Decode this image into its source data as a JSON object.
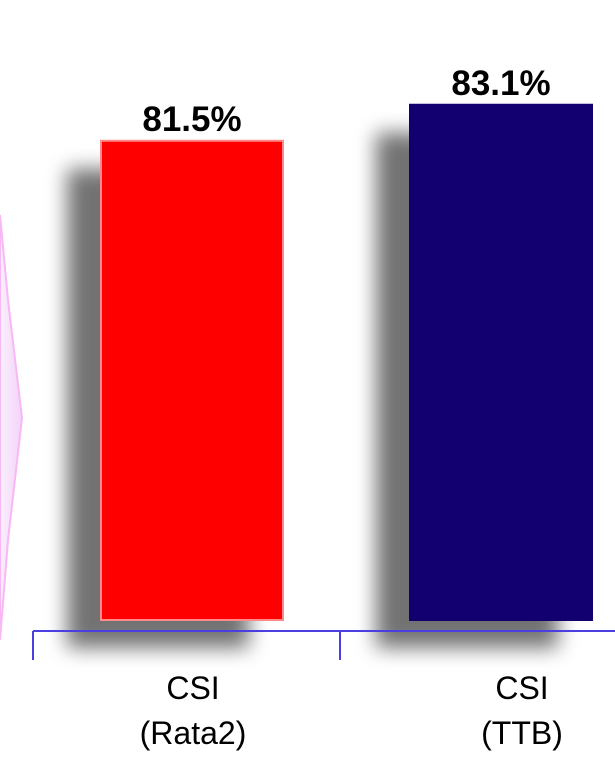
{
  "chart_data": {
    "type": "bar",
    "categories": [
      [
        "CSI",
        "(Rata2)"
      ],
      [
        "CSI",
        "(TTB)"
      ]
    ],
    "values": [
      81.5,
      83.1
    ],
    "value_labels": [
      "81.5%",
      "83.1%"
    ],
    "unit": "%",
    "colors": [
      "#ff0000",
      "#120070"
    ],
    "axis_color": "#4b3fe0",
    "title": "",
    "xlabel": "",
    "ylabel": "",
    "grid": false,
    "legend": "none"
  },
  "decor": {
    "left_arrow_color": "#f6d8fb"
  }
}
